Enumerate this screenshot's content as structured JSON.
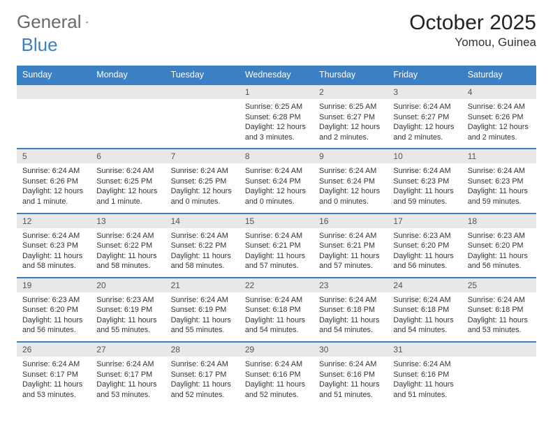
{
  "logo": {
    "text_general": "General",
    "text_blue": "Blue"
  },
  "header": {
    "month_title": "October 2025",
    "location": "Yomou, Guinea"
  },
  "colors": {
    "header_blue": "#3b7fc4",
    "daynum_bg": "#e8e8e8",
    "text": "#333333",
    "logo_gray": "#6a6a6a",
    "background": "#ffffff"
  },
  "calendar": {
    "day_headers": [
      "Sunday",
      "Monday",
      "Tuesday",
      "Wednesday",
      "Thursday",
      "Friday",
      "Saturday"
    ],
    "weeks": [
      [
        null,
        null,
        null,
        {
          "day": "1",
          "sunrise": "Sunrise: 6:25 AM",
          "sunset": "Sunset: 6:28 PM",
          "daylight": "Daylight: 12 hours and 3 minutes."
        },
        {
          "day": "2",
          "sunrise": "Sunrise: 6:25 AM",
          "sunset": "Sunset: 6:27 PM",
          "daylight": "Daylight: 12 hours and 2 minutes."
        },
        {
          "day": "3",
          "sunrise": "Sunrise: 6:24 AM",
          "sunset": "Sunset: 6:27 PM",
          "daylight": "Daylight: 12 hours and 2 minutes."
        },
        {
          "day": "4",
          "sunrise": "Sunrise: 6:24 AM",
          "sunset": "Sunset: 6:26 PM",
          "daylight": "Daylight: 12 hours and 2 minutes."
        }
      ],
      [
        {
          "day": "5",
          "sunrise": "Sunrise: 6:24 AM",
          "sunset": "Sunset: 6:26 PM",
          "daylight": "Daylight: 12 hours and 1 minute."
        },
        {
          "day": "6",
          "sunrise": "Sunrise: 6:24 AM",
          "sunset": "Sunset: 6:25 PM",
          "daylight": "Daylight: 12 hours and 1 minute."
        },
        {
          "day": "7",
          "sunrise": "Sunrise: 6:24 AM",
          "sunset": "Sunset: 6:25 PM",
          "daylight": "Daylight: 12 hours and 0 minutes."
        },
        {
          "day": "8",
          "sunrise": "Sunrise: 6:24 AM",
          "sunset": "Sunset: 6:24 PM",
          "daylight": "Daylight: 12 hours and 0 minutes."
        },
        {
          "day": "9",
          "sunrise": "Sunrise: 6:24 AM",
          "sunset": "Sunset: 6:24 PM",
          "daylight": "Daylight: 12 hours and 0 minutes."
        },
        {
          "day": "10",
          "sunrise": "Sunrise: 6:24 AM",
          "sunset": "Sunset: 6:23 PM",
          "daylight": "Daylight: 11 hours and 59 minutes."
        },
        {
          "day": "11",
          "sunrise": "Sunrise: 6:24 AM",
          "sunset": "Sunset: 6:23 PM",
          "daylight": "Daylight: 11 hours and 59 minutes."
        }
      ],
      [
        {
          "day": "12",
          "sunrise": "Sunrise: 6:24 AM",
          "sunset": "Sunset: 6:23 PM",
          "daylight": "Daylight: 11 hours and 58 minutes."
        },
        {
          "day": "13",
          "sunrise": "Sunrise: 6:24 AM",
          "sunset": "Sunset: 6:22 PM",
          "daylight": "Daylight: 11 hours and 58 minutes."
        },
        {
          "day": "14",
          "sunrise": "Sunrise: 6:24 AM",
          "sunset": "Sunset: 6:22 PM",
          "daylight": "Daylight: 11 hours and 58 minutes."
        },
        {
          "day": "15",
          "sunrise": "Sunrise: 6:24 AM",
          "sunset": "Sunset: 6:21 PM",
          "daylight": "Daylight: 11 hours and 57 minutes."
        },
        {
          "day": "16",
          "sunrise": "Sunrise: 6:24 AM",
          "sunset": "Sunset: 6:21 PM",
          "daylight": "Daylight: 11 hours and 57 minutes."
        },
        {
          "day": "17",
          "sunrise": "Sunrise: 6:23 AM",
          "sunset": "Sunset: 6:20 PM",
          "daylight": "Daylight: 11 hours and 56 minutes."
        },
        {
          "day": "18",
          "sunrise": "Sunrise: 6:23 AM",
          "sunset": "Sunset: 6:20 PM",
          "daylight": "Daylight: 11 hours and 56 minutes."
        }
      ],
      [
        {
          "day": "19",
          "sunrise": "Sunrise: 6:23 AM",
          "sunset": "Sunset: 6:20 PM",
          "daylight": "Daylight: 11 hours and 56 minutes."
        },
        {
          "day": "20",
          "sunrise": "Sunrise: 6:23 AM",
          "sunset": "Sunset: 6:19 PM",
          "daylight": "Daylight: 11 hours and 55 minutes."
        },
        {
          "day": "21",
          "sunrise": "Sunrise: 6:24 AM",
          "sunset": "Sunset: 6:19 PM",
          "daylight": "Daylight: 11 hours and 55 minutes."
        },
        {
          "day": "22",
          "sunrise": "Sunrise: 6:24 AM",
          "sunset": "Sunset: 6:18 PM",
          "daylight": "Daylight: 11 hours and 54 minutes."
        },
        {
          "day": "23",
          "sunrise": "Sunrise: 6:24 AM",
          "sunset": "Sunset: 6:18 PM",
          "daylight": "Daylight: 11 hours and 54 minutes."
        },
        {
          "day": "24",
          "sunrise": "Sunrise: 6:24 AM",
          "sunset": "Sunset: 6:18 PM",
          "daylight": "Daylight: 11 hours and 54 minutes."
        },
        {
          "day": "25",
          "sunrise": "Sunrise: 6:24 AM",
          "sunset": "Sunset: 6:18 PM",
          "daylight": "Daylight: 11 hours and 53 minutes."
        }
      ],
      [
        {
          "day": "26",
          "sunrise": "Sunrise: 6:24 AM",
          "sunset": "Sunset: 6:17 PM",
          "daylight": "Daylight: 11 hours and 53 minutes."
        },
        {
          "day": "27",
          "sunrise": "Sunrise: 6:24 AM",
          "sunset": "Sunset: 6:17 PM",
          "daylight": "Daylight: 11 hours and 53 minutes."
        },
        {
          "day": "28",
          "sunrise": "Sunrise: 6:24 AM",
          "sunset": "Sunset: 6:17 PM",
          "daylight": "Daylight: 11 hours and 52 minutes."
        },
        {
          "day": "29",
          "sunrise": "Sunrise: 6:24 AM",
          "sunset": "Sunset: 6:16 PM",
          "daylight": "Daylight: 11 hours and 52 minutes."
        },
        {
          "day": "30",
          "sunrise": "Sunrise: 6:24 AM",
          "sunset": "Sunset: 6:16 PM",
          "daylight": "Daylight: 11 hours and 51 minutes."
        },
        {
          "day": "31",
          "sunrise": "Sunrise: 6:24 AM",
          "sunset": "Sunset: 6:16 PM",
          "daylight": "Daylight: 11 hours and 51 minutes."
        },
        null
      ]
    ]
  }
}
